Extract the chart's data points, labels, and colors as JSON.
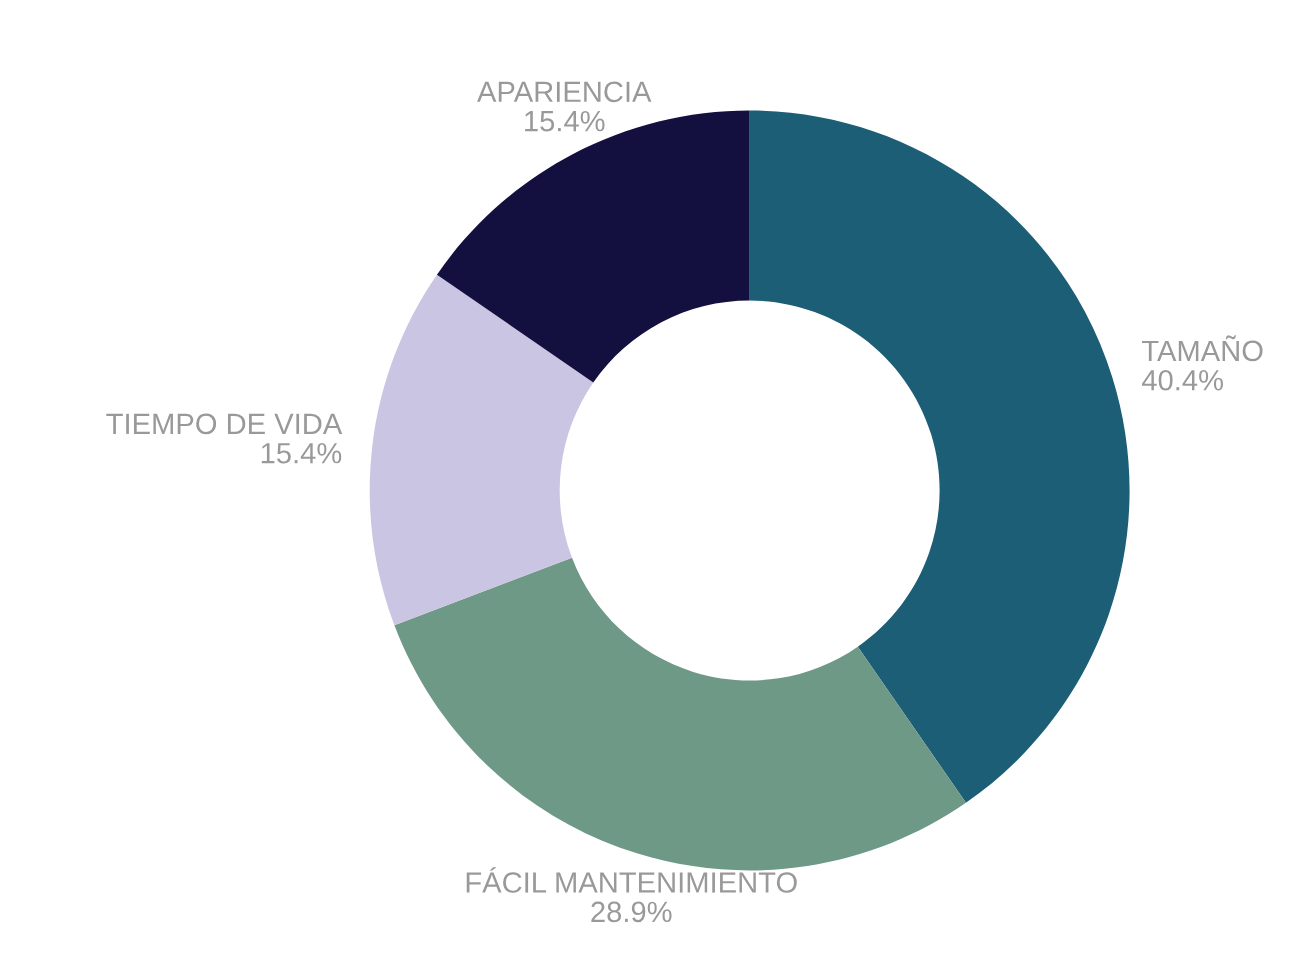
{
  "chart_data": {
    "type": "donut",
    "categories": [
      "TAMAÑO",
      "FÁCIL MANTENIMIENTO",
      "TIEMPO DE VIDA",
      "APARIENCIA"
    ],
    "values": [
      40.4,
      28.9,
      15.4,
      15.4
    ],
    "value_labels": [
      "40.4%",
      "28.9%",
      "15.4%",
      "15.4%"
    ],
    "colors": [
      "#1b5e75",
      "#6f9987",
      "#cbc5e4",
      "#130f3f"
    ],
    "legend": false
  }
}
